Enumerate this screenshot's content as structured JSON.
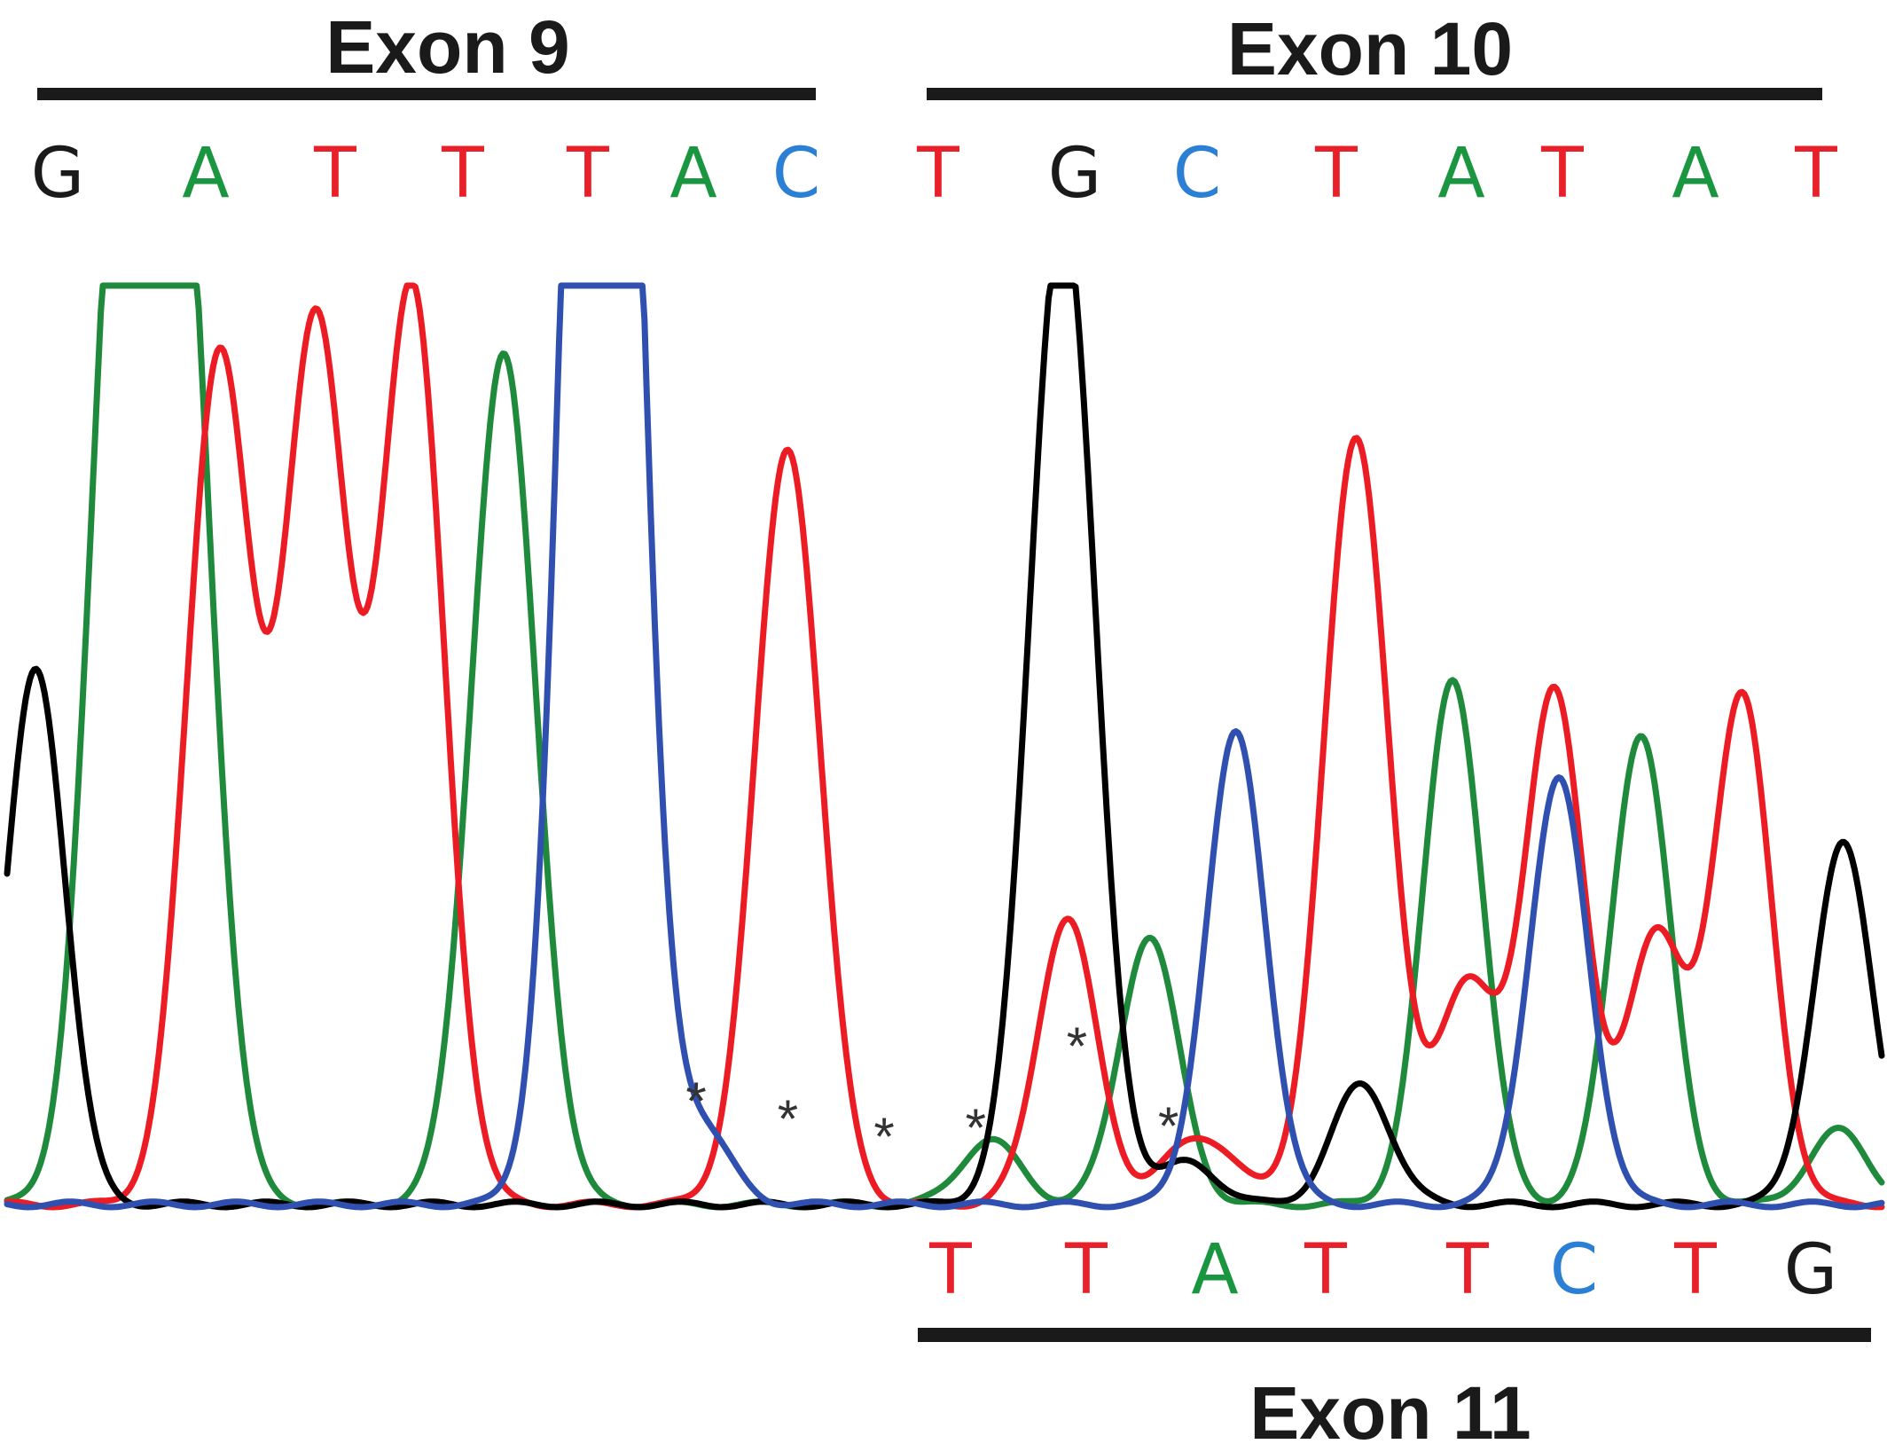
{
  "colors": {
    "A": "#1a9641",
    "C": "#2b7fd4",
    "G": "#1a1a1a",
    "T": "#e8202a",
    "trace_blue": "#3050b0",
    "trace_green": "#1f8a3c",
    "trace_red": "#ec1c24",
    "trace_black": "#000000",
    "bar": "#1a1a1a"
  },
  "exons": {
    "exon9": "Exon 9",
    "exon10": "Exon 10",
    "exon11": "Exon 11"
  },
  "top_sequence": [
    "G",
    "A",
    "T",
    "T",
    "T",
    "A",
    "C",
    "T",
    "G",
    "C",
    "T",
    "A",
    "T",
    "A",
    "T"
  ],
  "bottom_sequence": [
    "T",
    "T",
    "A",
    "T",
    "T",
    "C",
    "T",
    "G"
  ],
  "star_marker": "*",
  "chart_data": {
    "type": "line",
    "title": "",
    "xlabel": "",
    "ylabel": "",
    "description_axes": "sequencing chromatogram; x = base position, y = relative signal intensity (no printed axes)",
    "ylim": [
      0,
      1
    ],
    "series": [
      {
        "name": "G",
        "color": "#000000",
        "peaks": [
          [
            0.15,
            0.58
          ],
          [
            10.8,
            1.08
          ],
          [
            12.1,
            0.045
          ],
          [
            13.9,
            0.13
          ],
          [
            18.9,
            0.39
          ]
        ]
      },
      {
        "name": "A",
        "color": "#1f8a3c",
        "peaks": [
          [
            1.05,
            1.15
          ],
          [
            1.65,
            1.05
          ],
          [
            5.0,
            0.92
          ],
          [
            10.05,
            0.07
          ],
          [
            11.7,
            0.29
          ],
          [
            14.85,
            0.57
          ],
          [
            16.8,
            0.51
          ],
          [
            18.85,
            0.08
          ]
        ]
      },
      {
        "name": "T",
        "color": "#ec1c24",
        "peaks": [
          [
            2.05,
            0.92
          ],
          [
            3.05,
            0.95
          ],
          [
            4.05,
            0.99
          ],
          [
            7.95,
            0.82
          ],
          [
            10.85,
            0.31
          ],
          [
            12.0,
            0.04
          ],
          [
            12.4,
            0.05
          ],
          [
            13.85,
            0.83
          ],
          [
            15.0,
            0.24
          ],
          [
            15.9,
            0.56
          ],
          [
            16.95,
            0.29
          ],
          [
            17.85,
            0.55
          ]
        ]
      },
      {
        "name": "C",
        "color": "#3050b0",
        "peaks": [
          [
            5.95,
            1.15
          ],
          [
            6.1,
            1.05
          ],
          [
            7.05,
            0.08
          ],
          [
            12.6,
            0.51
          ],
          [
            15.95,
            0.46
          ]
        ]
      }
    ],
    "star_positions": [
      7.0,
      7.95,
      8.95,
      9.9,
      10.95,
      11.9
    ],
    "top_bases": "GATTTACTGCTATAT",
    "bottom_bases": "TTATTCTG"
  }
}
